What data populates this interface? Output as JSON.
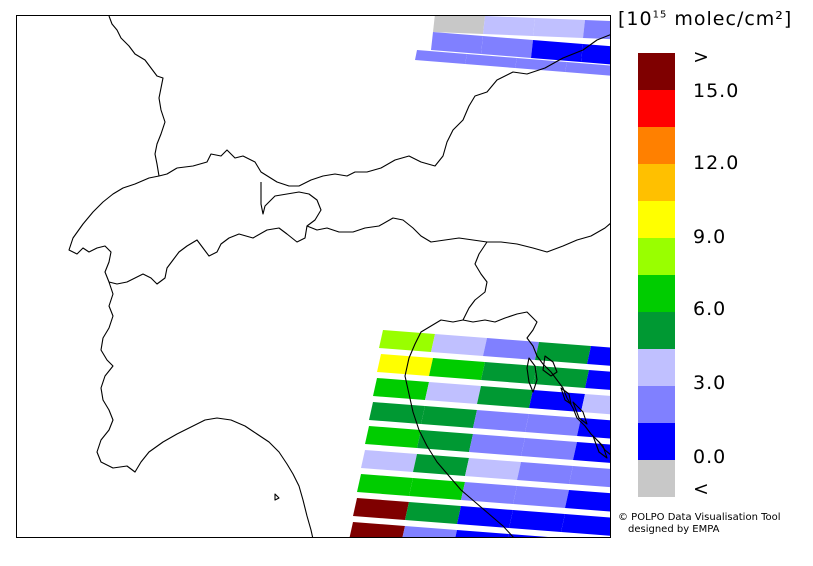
{
  "legend": {
    "unit_open": "[",
    "unit_base": "10",
    "unit_exp": "15",
    "unit_rest": "molec/cm²]",
    "swatches": [
      {
        "color": "#7f0000"
      },
      {
        "color": "#ff0000"
      },
      {
        "color": "#ff8000"
      },
      {
        "color": "#ffc000"
      },
      {
        "color": "#ffff00"
      },
      {
        "color": "#99ff00"
      },
      {
        "color": "#00cc00"
      },
      {
        "color": "#009933"
      },
      {
        "color": "#c0c0ff"
      },
      {
        "color": "#8080ff"
      },
      {
        "color": "#0000ff"
      },
      {
        "color": "#c8c8c8"
      }
    ],
    "ticks": [
      ">",
      "15.0",
      "12.0",
      "9.0",
      "6.0",
      "3.0",
      "0.0",
      "<"
    ]
  },
  "credit": {
    "line1": "© POLPO Data Visualisation Tool",
    "line2": "designed by EMPA"
  },
  "map": {
    "border_color": "#000000",
    "no_data_color": "#c8c8c8"
  }
}
